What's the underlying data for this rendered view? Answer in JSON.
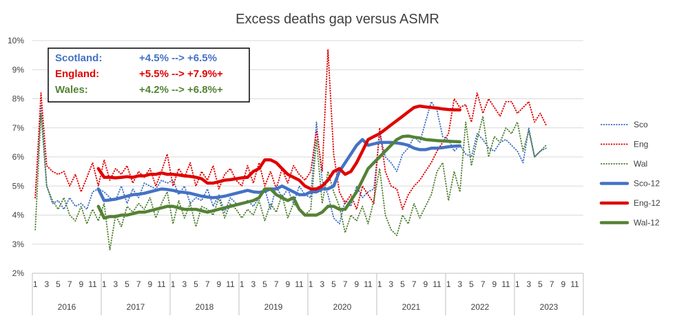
{
  "chart_data": {
    "type": "line",
    "title": "Excess deaths gap versus ASMR",
    "ylim": [
      0.02,
      0.1
    ],
    "yticks": [
      "2%",
      "3%",
      "4%",
      "5%",
      "6%",
      "7%",
      "8%",
      "9%",
      "10%"
    ],
    "month_ticks": [
      "1",
      "3",
      "5",
      "7",
      "9",
      "11"
    ],
    "years": [
      "2016",
      "2017",
      "2018",
      "2019",
      "2020",
      "2021",
      "2022",
      "2023"
    ],
    "months_total": 96,
    "colors": {
      "sco": "#4472C4",
      "eng": "#E00000",
      "wal": "#548235"
    },
    "annotation": [
      {
        "label": "Scotland:",
        "value": "+4.5% --> +6.5%",
        "color": "#4472C4"
      },
      {
        "label": "England:",
        "value": "+5.5% --> +7.9%+",
        "color": "#E00000"
      },
      {
        "label": "Wales:",
        "value": "+4.2% --> +6.8%+",
        "color": "#548235"
      }
    ],
    "legend": [
      "Sco",
      "Eng",
      "Wal",
      "Sco-12",
      "Eng-12",
      "Wal-12"
    ],
    "series": [
      {
        "name": "Sco",
        "style": "dotted",
        "color": "#4472C4",
        "start": 1,
        "values": [
          0.046,
          0.078,
          0.05,
          0.044,
          0.045,
          0.042,
          0.046,
          0.043,
          0.044,
          0.042,
          0.048,
          0.049,
          0.048,
          0.046,
          0.045,
          0.05,
          0.044,
          0.049,
          0.046,
          0.051,
          0.05,
          0.049,
          0.052,
          0.051,
          0.052,
          0.047,
          0.05,
          0.044,
          0.046,
          0.045,
          0.049,
          0.043,
          0.047,
          0.041,
          0.046,
          0.044,
          0.044,
          0.045,
          0.043,
          0.046,
          0.049,
          0.042,
          0.05,
          0.046,
          0.049,
          0.044,
          0.05,
          0.047,
          0.046,
          0.072,
          0.052,
          0.047,
          0.039,
          0.037,
          0.045,
          0.043,
          0.05,
          0.046,
          0.048,
          0.049,
          0.068,
          0.06,
          0.058,
          0.055,
          0.061,
          0.063,
          0.067,
          0.065,
          0.072,
          0.079,
          0.076,
          0.067,
          0.066,
          0.062,
          0.064,
          0.061,
          0.06,
          0.068,
          0.066,
          0.063,
          0.062,
          0.065,
          0.066,
          0.064,
          0.062,
          0.058,
          0.07,
          0.06,
          0.062,
          0.063
        ]
      },
      {
        "name": "Eng",
        "style": "dotted",
        "color": "#E00000",
        "start": 1,
        "values": [
          0.046,
          0.082,
          0.057,
          0.055,
          0.054,
          0.055,
          0.05,
          0.054,
          0.048,
          0.053,
          0.058,
          0.05,
          0.059,
          0.052,
          0.056,
          0.054,
          0.057,
          0.051,
          0.055,
          0.053,
          0.056,
          0.05,
          0.055,
          0.061,
          0.05,
          0.056,
          0.053,
          0.058,
          0.05,
          0.055,
          0.052,
          0.057,
          0.049,
          0.054,
          0.056,
          0.052,
          0.05,
          0.057,
          0.051,
          0.058,
          0.05,
          0.055,
          0.049,
          0.056,
          0.051,
          0.057,
          0.054,
          0.052,
          0.055,
          0.069,
          0.055,
          0.097,
          0.061,
          0.048,
          0.044,
          0.047,
          0.042,
          0.05,
          0.047,
          0.044,
          0.07,
          0.055,
          0.05,
          0.049,
          0.042,
          0.047,
          0.05,
          0.052,
          0.055,
          0.058,
          0.062,
          0.065,
          0.068,
          0.08,
          0.077,
          0.078,
          0.072,
          0.082,
          0.075,
          0.08,
          0.077,
          0.074,
          0.079,
          0.079,
          0.075,
          0.077,
          0.079,
          0.072,
          0.075,
          0.071
        ]
      },
      {
        "name": "Wal",
        "style": "dotted",
        "color": "#548235",
        "start": 1,
        "values": [
          0.035,
          0.075,
          0.05,
          0.045,
          0.042,
          0.046,
          0.04,
          0.038,
          0.043,
          0.037,
          0.042,
          0.038,
          0.044,
          0.028,
          0.04,
          0.036,
          0.043,
          0.041,
          0.044,
          0.042,
          0.046,
          0.039,
          0.044,
          0.048,
          0.037,
          0.045,
          0.039,
          0.044,
          0.036,
          0.043,
          0.042,
          0.04,
          0.046,
          0.039,
          0.044,
          0.042,
          0.039,
          0.042,
          0.04,
          0.045,
          0.038,
          0.044,
          0.041,
          0.047,
          0.039,
          0.044,
          0.042,
          0.04,
          0.042,
          0.066,
          0.044,
          0.055,
          0.048,
          0.043,
          0.034,
          0.04,
          0.038,
          0.043,
          0.037,
          0.045,
          0.056,
          0.04,
          0.035,
          0.033,
          0.04,
          0.037,
          0.044,
          0.039,
          0.043,
          0.047,
          0.055,
          0.058,
          0.045,
          0.055,
          0.048,
          0.072,
          0.057,
          0.066,
          0.074,
          0.06,
          0.067,
          0.065,
          0.07,
          0.068,
          0.072,
          0.062,
          0.069,
          0.06,
          0.062,
          0.064
        ]
      },
      {
        "name": "Sco-12",
        "style": "solid",
        "color": "#4472C4",
        "start": 12,
        "values": [
          0.049,
          0.045,
          0.0452,
          0.0455,
          0.046,
          0.0465,
          0.047,
          0.0472,
          0.0475,
          0.048,
          0.0485,
          0.049,
          0.0488,
          0.0485,
          0.048,
          0.0478,
          0.0475,
          0.047,
          0.0465,
          0.0462,
          0.046,
          0.0462,
          0.0465,
          0.047,
          0.0475,
          0.048,
          0.0485,
          0.048,
          0.0478,
          0.0482,
          0.049,
          0.049,
          0.05,
          0.049,
          0.048,
          0.047,
          0.047,
          0.048,
          0.048,
          0.049,
          0.049,
          0.05,
          0.055,
          0.058,
          0.061,
          0.064,
          0.066,
          0.064,
          0.0645,
          0.065,
          0.065,
          0.065,
          0.0648,
          0.0645,
          0.064,
          0.063,
          0.0625,
          0.0625,
          0.063,
          0.063,
          0.0632,
          0.0635,
          0.0637,
          0.0638
        ]
      },
      {
        "name": "Eng-12",
        "style": "solid",
        "color": "#E00000",
        "start": 12,
        "values": [
          0.056,
          0.053,
          0.053,
          0.0528,
          0.053,
          0.0532,
          0.053,
          0.0535,
          0.0535,
          0.054,
          0.054,
          0.0545,
          0.054,
          0.054,
          0.0538,
          0.0535,
          0.0533,
          0.053,
          0.0525,
          0.051,
          0.051,
          0.0515,
          0.052,
          0.0522,
          0.0525,
          0.0528,
          0.053,
          0.055,
          0.056,
          0.059,
          0.059,
          0.058,
          0.056,
          0.054,
          0.053,
          0.052,
          0.05,
          0.049,
          0.049,
          0.05,
          0.052,
          0.055,
          0.056,
          0.054,
          0.055,
          0.058,
          0.062,
          0.066,
          0.067,
          0.068,
          0.0695,
          0.071,
          0.0725,
          0.074,
          0.0755,
          0.077,
          0.0775,
          0.0772,
          0.077,
          0.0768,
          0.0765,
          0.0763,
          0.0762,
          0.0762
        ]
      },
      {
        "name": "Wal-12",
        "style": "solid",
        "color": "#548235",
        "start": 12,
        "values": [
          0.043,
          0.039,
          0.0395,
          0.0395,
          0.04,
          0.04,
          0.0405,
          0.041,
          0.041,
          0.0415,
          0.042,
          0.0425,
          0.043,
          0.043,
          0.0425,
          0.042,
          0.042,
          0.042,
          0.0415,
          0.041,
          0.0415,
          0.042,
          0.0425,
          0.043,
          0.0435,
          0.044,
          0.0445,
          0.045,
          0.046,
          0.049,
          0.049,
          0.047,
          0.046,
          0.045,
          0.046,
          0.042,
          0.04,
          0.04,
          0.04,
          0.041,
          0.043,
          0.043,
          0.042,
          0.042,
          0.045,
          0.048,
          0.052,
          0.056,
          0.058,
          0.06,
          0.062,
          0.064,
          0.066,
          0.067,
          0.0672,
          0.0668,
          0.0665,
          0.066,
          0.0658,
          0.0656,
          0.0655,
          0.0654,
          0.0653,
          0.0652
        ]
      }
    ]
  }
}
